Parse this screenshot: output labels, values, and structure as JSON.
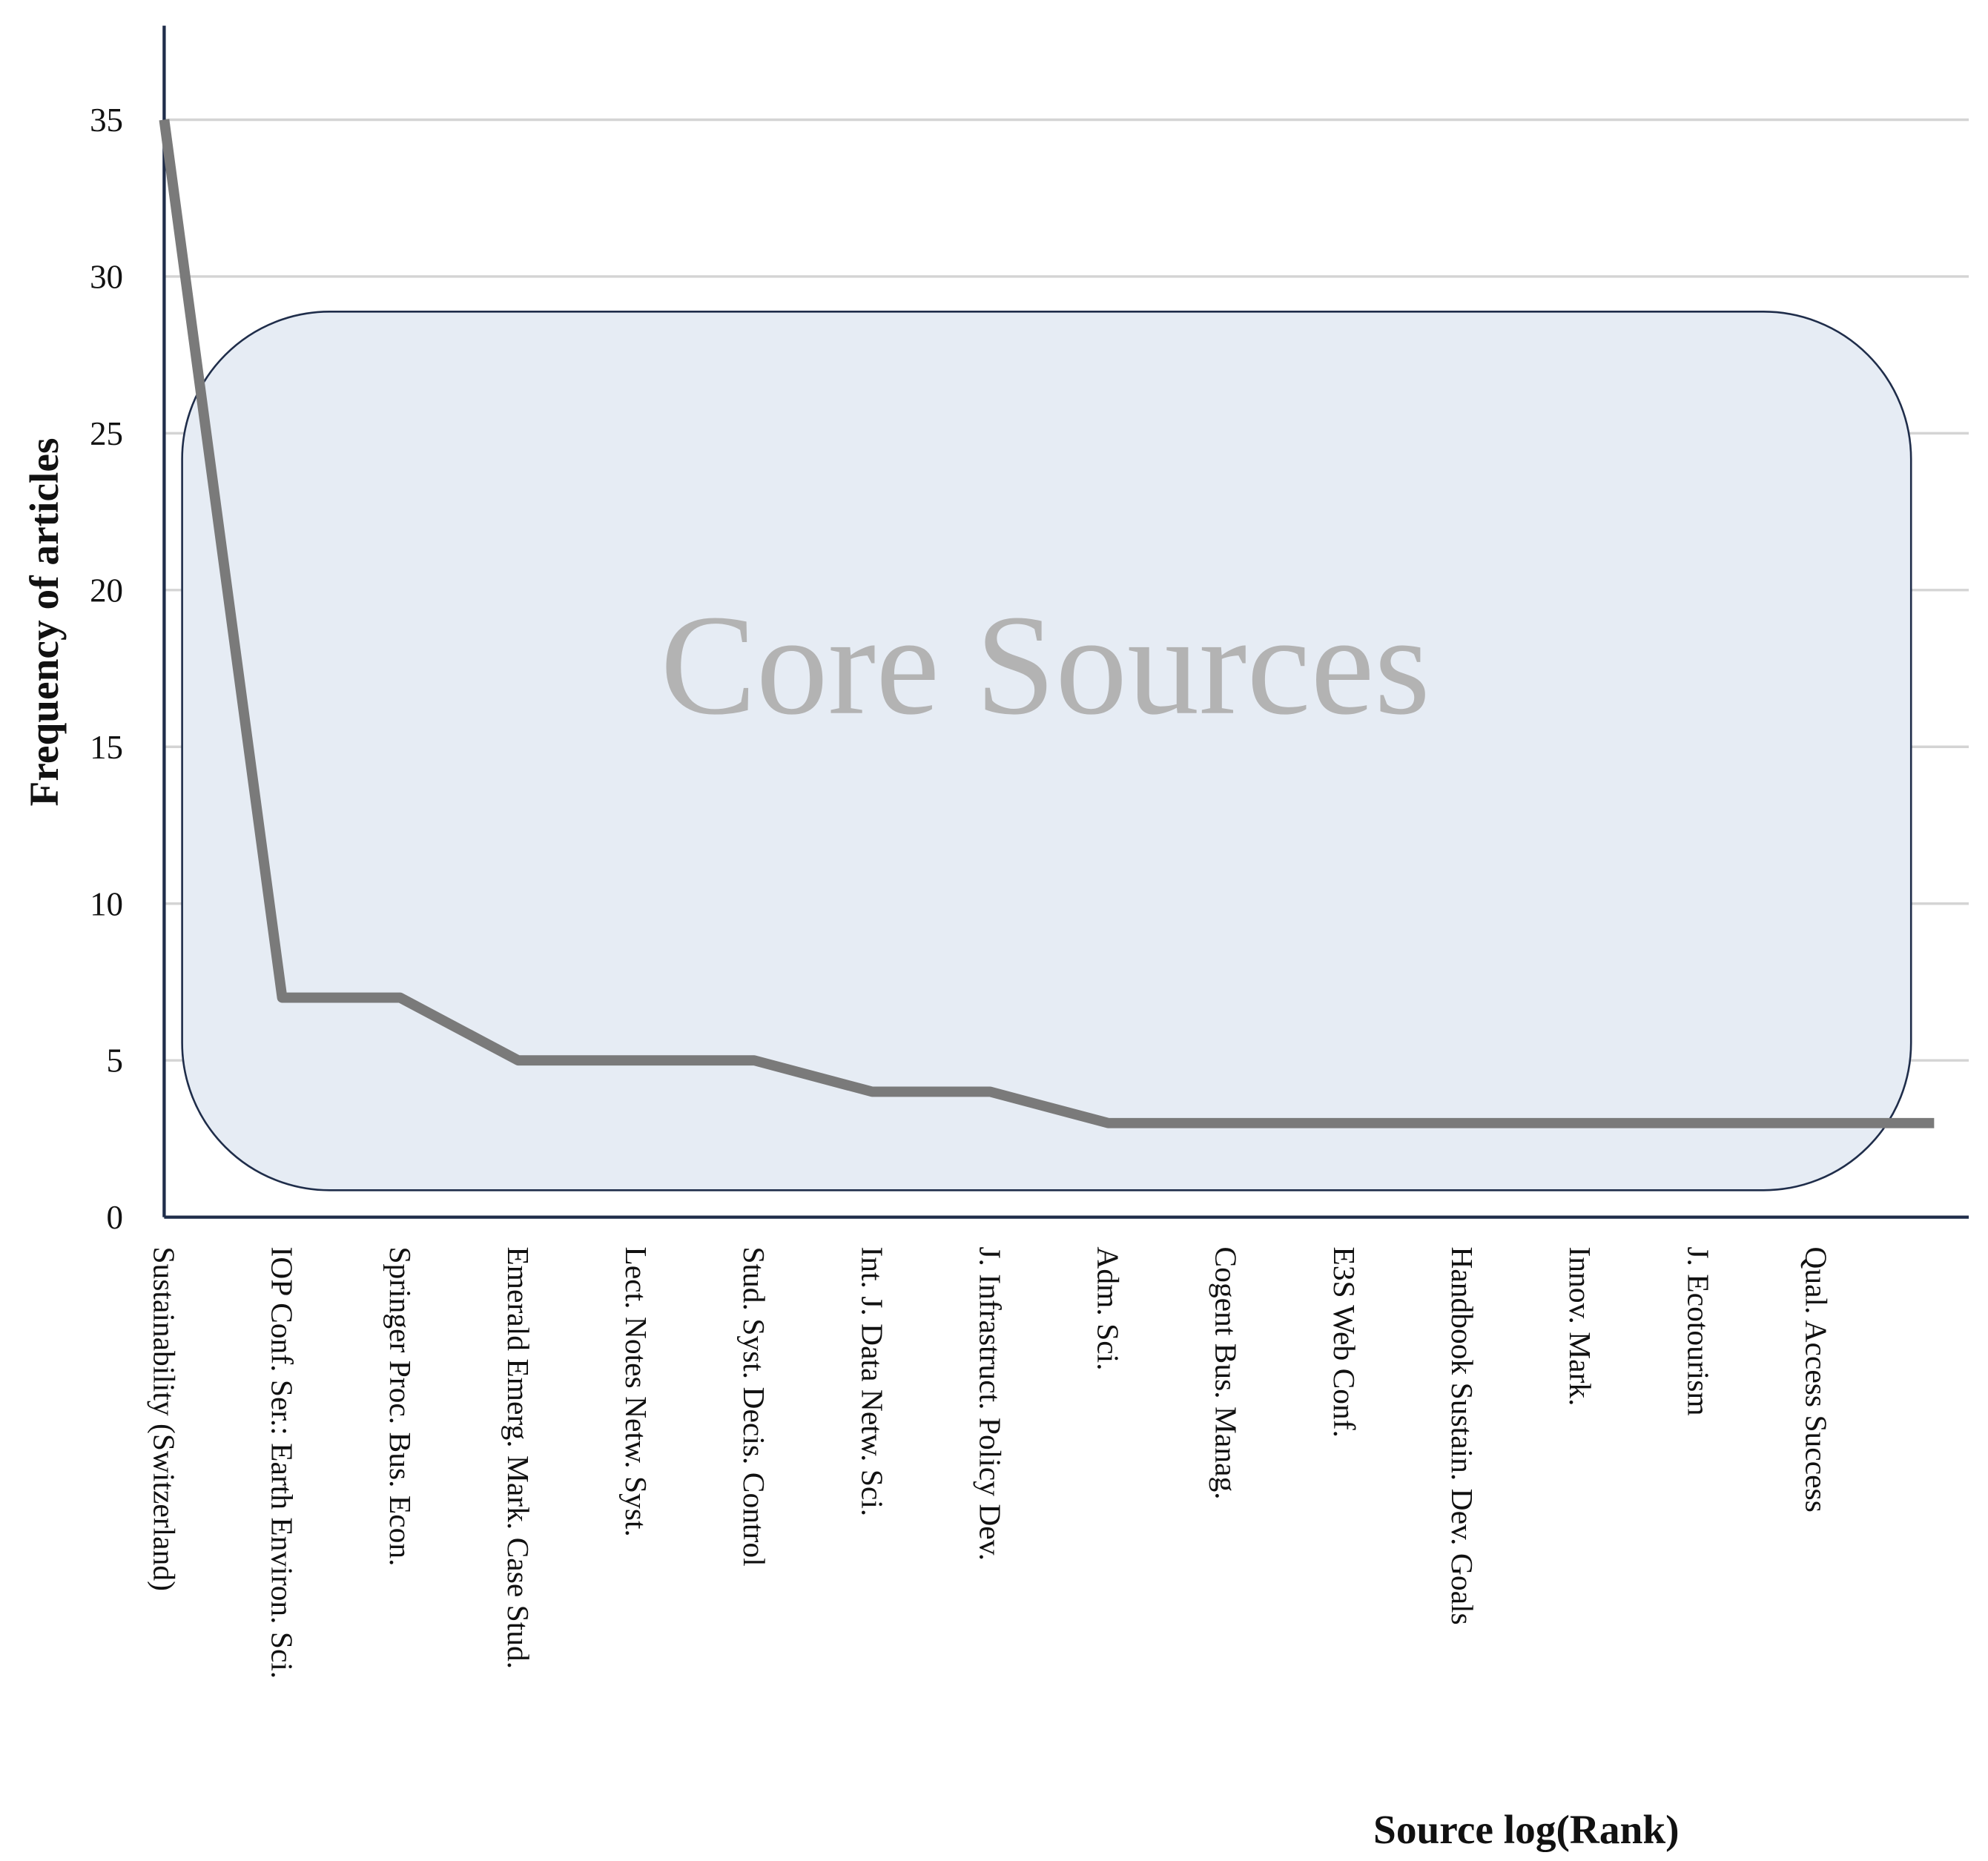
{
  "chart_data": {
    "type": "line",
    "ylabel": "Frequency of articles",
    "xlabel": "Source log(Rank)",
    "annotation": "Core Sources",
    "categories": [
      "Sustainability (Switzerland)",
      "IOP Conf. Ser.: Earth Environ. Sci.",
      "Springer Proc. Bus. Econ.",
      "Emerald Emerg. Mark. Case Stud.",
      "Lect. Notes Netw. Syst.",
      "Stud. Syst. Decis. Control",
      "Int. J. Data Netw. Sci.",
      "J. Infrastruct. Policy Dev.",
      "Adm. Sci.",
      "Cogent Bus. Manag.",
      "E3S Web Conf.",
      "Handbook Sustain. Dev. Goals",
      "Innov. Mark.",
      "J. Ecotourism",
      "Qual. Access Success",
      null
    ],
    "series": [
      {
        "name": "Frequency of articles",
        "color": "#7a7a7a",
        "values": [
          35,
          7,
          7,
          5,
          5,
          5,
          4,
          4,
          3,
          3,
          3,
          3,
          3,
          3,
          3,
          3
        ]
      }
    ],
    "ylim": [
      0,
      38
    ],
    "yticks": [
      0,
      5,
      10,
      15,
      20,
      25,
      30,
      35
    ],
    "grid": true
  }
}
